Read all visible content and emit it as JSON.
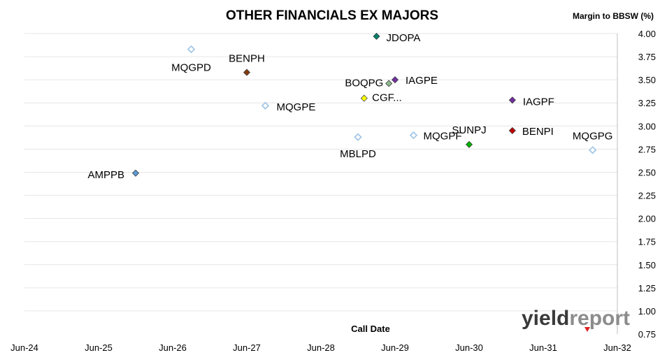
{
  "chart_data": {
    "type": "scatter",
    "title": "OTHER FINANCIALS EX MAJORS",
    "xlabel": "Call Date",
    "ylabel": "Margin to BBSW (%)",
    "x_ticks": [
      "Jun-24",
      "Jun-25",
      "Jun-26",
      "Jun-27",
      "Jun-28",
      "Jun-29",
      "Jun-30",
      "Jun-31",
      "Jun-32"
    ],
    "xlim": [
      "2024-06",
      "2032-06"
    ],
    "ylim": [
      0.75,
      4.0
    ],
    "y_ticks": [
      "0.75",
      "1.00",
      "1.25",
      "1.50",
      "1.75",
      "2.00",
      "2.25",
      "2.50",
      "2.75",
      "3.00",
      "3.25",
      "3.50",
      "3.75",
      "4.00"
    ],
    "grid": true,
    "legend": "none",
    "points": [
      {
        "label": "AMPPB",
        "x": "2025-12",
        "y": 2.49,
        "color": "#5b9bd5",
        "filled": true
      },
      {
        "label": "MQGPD",
        "x": "2026-09",
        "y": 3.83,
        "color": "#9dc3e6",
        "filled": false
      },
      {
        "label": "BENPH",
        "x": "2027-06",
        "y": 3.58,
        "color": "#843c0c",
        "filled": true
      },
      {
        "label": "MQGPE",
        "x": "2027-09",
        "y": 3.22,
        "color": "#9dc3e6",
        "filled": false
      },
      {
        "label": "JDOPA",
        "x": "2029-03",
        "y": 3.97,
        "color": "#00806b",
        "filled": true
      },
      {
        "label": "BOQPG",
        "x": "2029-01",
        "y": 3.3,
        "color": "#ffff00",
        "filled": true
      },
      {
        "label": "IAGPE",
        "x": "2029-06",
        "y": 3.5,
        "color": "#7030a0",
        "filled": true
      },
      {
        "label": "CGF...",
        "x": "2029-05",
        "y": 3.46,
        "color": "#8fb98f",
        "filled": true
      },
      {
        "label": "MBLPD",
        "x": "2028-12",
        "y": 2.88,
        "color": "#9dc3e6",
        "filled": false
      },
      {
        "label": "MQGPF",
        "x": "2029-09",
        "y": 2.9,
        "color": "#9dc3e6",
        "filled": false
      },
      {
        "label": "SUNPJ",
        "x": "2030-06",
        "y": 2.8,
        "color": "#00b000",
        "filled": true
      },
      {
        "label": "IAGPF",
        "x": "2031-01",
        "y": 3.28,
        "color": "#7030a0",
        "filled": true
      },
      {
        "label": "BENPI",
        "x": "2031-01",
        "y": 2.95,
        "color": "#c00000",
        "filled": true
      },
      {
        "label": "MQGPG",
        "x": "2032-02",
        "y": 2.74,
        "color": "#9dc3e6",
        "filled": false
      }
    ]
  },
  "logo": {
    "part1": "yield",
    "part2": "report"
  }
}
